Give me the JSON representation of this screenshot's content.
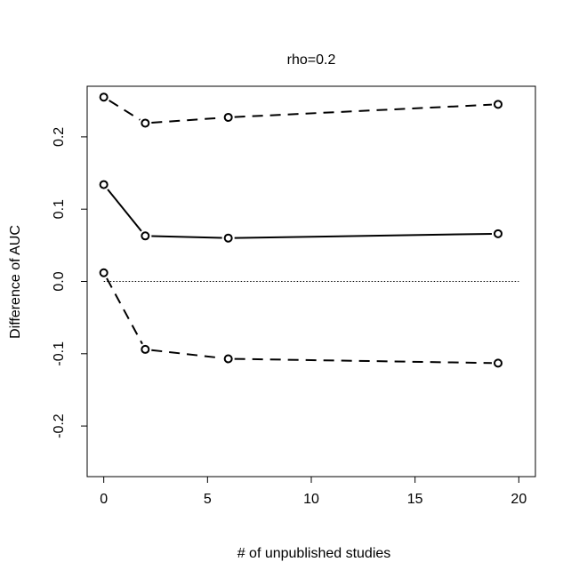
{
  "chart_data": {
    "type": "line",
    "title": "rho=0.2",
    "xlabel": "# of unpublished studies",
    "ylabel": "Difference of AUC",
    "x": [
      0,
      2,
      6,
      19
    ],
    "xlim": [
      -0.8,
      20.8
    ],
    "ylim": [
      -0.27,
      0.27
    ],
    "xticks": [
      "0",
      "5",
      "10",
      "15",
      "20"
    ],
    "yticks": [
      "-0.2",
      "-0.1",
      "0.0",
      "0.1",
      "0.2"
    ],
    "grid": false,
    "reference_line": {
      "y": 0,
      "x_from": 0,
      "x_to": 20,
      "style": "dotted"
    },
    "series": [
      {
        "values": [
          0.255,
          0.219,
          0.227,
          0.245
        ],
        "style": "dashed",
        "marker": "open-circle",
        "color": "#000000"
      },
      {
        "values": [
          0.134,
          0.063,
          0.06,
          0.066
        ],
        "style": "solid",
        "marker": "open-circle",
        "color": "#000000"
      },
      {
        "values": [
          0.012,
          -0.094,
          -0.107,
          -0.113
        ],
        "style": "dashed",
        "marker": "open-circle",
        "color": "#000000"
      }
    ]
  }
}
